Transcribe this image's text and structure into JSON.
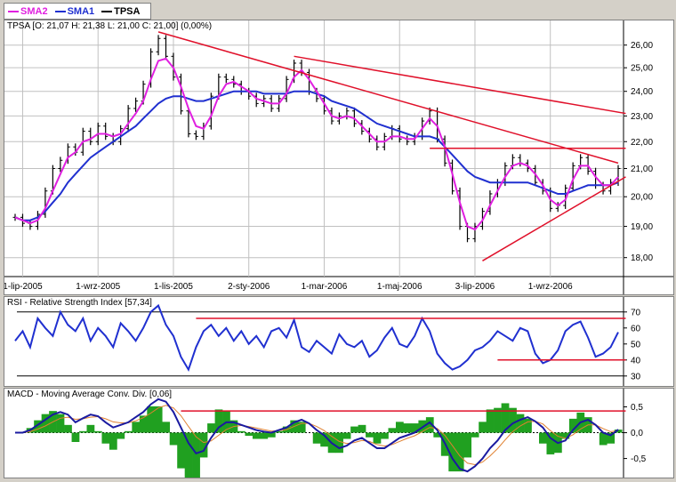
{
  "legend": [
    {
      "name": "SMA2",
      "color": "#e020e0"
    },
    {
      "name": "SMA1",
      "color": "#2030d0"
    },
    {
      "name": "TPSA",
      "color": "#000000"
    }
  ],
  "panels": {
    "price": {
      "title": "TPSA [O: 21,07  H: 21,38  L: 21,00  C: 21,00] (0,00%)"
    },
    "rsi": {
      "title": "RSI - Relative Strength Index [57,34]"
    },
    "macd": {
      "title": "MACD - Moving Average Conv. Div. [0,06]"
    }
  },
  "colors": {
    "trendline": "#e0102a",
    "sma1": "#2030d0",
    "sma2": "#e020e0",
    "macd_line": "#1a1aa0",
    "macd_signal": "#e08030",
    "histogram": "#20a020",
    "price": "#000000",
    "grid": "#c0c0c0"
  },
  "chart_data": [
    {
      "type": "line",
      "title": "TPSA [O: 21,07  H: 21,38  L: 21,00  C: 21,00] (0,00%)",
      "x_tick_labels": [
        "1-lip-2005",
        "1-wrz-2005",
        "1-lis-2005",
        "2-sty-2006",
        "1-mar-2006",
        "1-maj-2006",
        "3-lip-2006",
        "1-wrz-2006"
      ],
      "y_tick_labels": [
        "18,00",
        "19,00",
        "20,00",
        "21,00",
        "22,00",
        "23,00",
        "24,00",
        "25,00",
        "26,00"
      ],
      "ylim": [
        17.5,
        26.8
      ],
      "y_scale": "log",
      "grid": true,
      "series": [
        {
          "name": "TPSA",
          "kind": "ohlc-bars",
          "close": [
            19.3,
            19.1,
            19.0,
            19.4,
            20.2,
            21.0,
            21.3,
            21.8,
            21.6,
            22.4,
            22.0,
            22.6,
            22.2,
            22.0,
            22.5,
            23.3,
            23.6,
            24.3,
            25.7,
            26.3,
            25.5,
            24.6,
            23.2,
            22.3,
            22.2,
            22.6,
            23.8,
            24.6,
            24.5,
            24.3,
            24.0,
            23.8,
            23.5,
            23.7,
            23.3,
            23.7,
            24.5,
            25.2,
            24.8,
            24.0,
            23.7,
            23.2,
            22.8,
            23.0,
            23.2,
            22.7,
            22.4,
            22.1,
            21.8,
            22.2,
            22.5,
            22.1,
            22.0,
            22.2,
            22.8,
            23.2,
            22.1,
            21.2,
            20.2,
            19.0,
            18.6,
            19.0,
            19.5,
            20.1,
            20.5,
            21.1,
            21.4,
            21.2,
            21.0,
            20.5,
            20.2,
            19.6,
            19.7,
            20.3,
            21.1,
            21.4,
            20.9,
            20.4,
            20.2,
            20.5,
            21.0
          ]
        },
        {
          "name": "SMA2",
          "values": [
            19.3,
            19.2,
            19.1,
            19.2,
            19.6,
            20.2,
            20.8,
            21.4,
            21.6,
            22.0,
            22.1,
            22.3,
            22.3,
            22.2,
            22.3,
            22.7,
            23.1,
            23.6,
            24.5,
            25.3,
            25.4,
            25.0,
            24.2,
            23.3,
            22.6,
            22.5,
            23.0,
            23.8,
            24.3,
            24.4,
            24.2,
            24.0,
            23.7,
            23.6,
            23.5,
            23.5,
            23.9,
            24.6,
            24.9,
            24.5,
            24.0,
            23.5,
            23.0,
            22.9,
            23.0,
            22.9,
            22.6,
            22.3,
            22.0,
            22.0,
            22.2,
            22.2,
            22.1,
            22.1,
            22.5,
            22.9,
            22.6,
            21.8,
            20.8,
            19.8,
            19.0,
            18.9,
            19.2,
            19.7,
            20.2,
            20.7,
            21.1,
            21.2,
            21.1,
            20.8,
            20.4,
            19.9,
            19.7,
            19.9,
            20.6,
            21.1,
            21.1,
            20.7,
            20.4,
            20.4,
            20.7
          ]
        },
        {
          "name": "SMA1",
          "values": [
            19.3,
            19.2,
            19.2,
            19.3,
            19.5,
            19.8,
            20.1,
            20.5,
            20.8,
            21.1,
            21.4,
            21.6,
            21.8,
            22.0,
            22.2,
            22.4,
            22.6,
            22.9,
            23.2,
            23.5,
            23.7,
            23.8,
            23.8,
            23.7,
            23.6,
            23.6,
            23.7,
            23.8,
            23.9,
            24.0,
            24.0,
            24.0,
            24.0,
            23.9,
            23.9,
            23.9,
            23.9,
            24.0,
            24.0,
            24.0,
            23.9,
            23.8,
            23.6,
            23.5,
            23.4,
            23.3,
            23.1,
            22.9,
            22.7,
            22.6,
            22.5,
            22.4,
            22.3,
            22.2,
            22.2,
            22.2,
            22.1,
            21.8,
            21.5,
            21.2,
            20.9,
            20.7,
            20.6,
            20.5,
            20.5,
            20.5,
            20.5,
            20.5,
            20.5,
            20.4,
            20.3,
            20.2,
            20.1,
            20.1,
            20.2,
            20.3,
            20.4,
            20.4,
            20.4,
            20.4,
            20.5
          ]
        }
      ],
      "trendlines": [
        {
          "from": [
            19,
            26.6
          ],
          "to": [
            80,
            21.2
          ]
        },
        {
          "from": [
            37,
            25.5
          ],
          "to": [
            81,
            23.1
          ]
        },
        {
          "from": [
            55,
            21.75
          ],
          "to": [
            81,
            21.75
          ]
        },
        {
          "from": [
            62,
            17.9
          ],
          "to": [
            81,
            20.7
          ]
        }
      ]
    },
    {
      "type": "line",
      "title": "RSI - Relative Strength Index [57,34]",
      "y_tick_labels": [
        "30",
        "40",
        "50",
        "60",
        "70"
      ],
      "ylim": [
        26,
        76
      ],
      "series": [
        {
          "name": "RSI",
          "values": [
            52,
            58,
            48,
            66,
            60,
            55,
            70,
            62,
            58,
            66,
            52,
            60,
            55,
            48,
            63,
            58,
            52,
            60,
            70,
            74,
            62,
            55,
            42,
            34,
            48,
            58,
            62,
            55,
            60,
            52,
            58,
            50,
            55,
            48,
            58,
            60,
            54,
            65,
            48,
            45,
            52,
            48,
            44,
            56,
            50,
            48,
            52,
            42,
            46,
            54,
            60,
            50,
            48,
            55,
            66,
            58,
            44,
            38,
            34,
            36,
            40,
            46,
            48,
            52,
            58,
            55,
            52,
            60,
            58,
            44,
            38,
            40,
            46,
            58,
            62,
            64,
            54,
            42,
            44,
            48,
            57.34
          ]
        }
      ],
      "trendlines": [
        {
          "from": [
            24,
            66
          ],
          "to": [
            81,
            66
          ]
        },
        {
          "from": [
            64,
            40
          ],
          "to": [
            81,
            40
          ]
        }
      ],
      "reference_lines": [
        30,
        70
      ]
    },
    {
      "type": "line",
      "title": "MACD - Moving Average Conv. Div. [0,06]",
      "y_tick_labels": [
        "0,5",
        "0,0",
        "-0,5"
      ],
      "ylim": [
        -0.8,
        0.75
      ],
      "series": [
        {
          "name": "MACD",
          "values": [
            0.0,
            0.0,
            0.05,
            0.15,
            0.25,
            0.35,
            0.4,
            0.35,
            0.2,
            0.28,
            0.35,
            0.32,
            0.2,
            0.1,
            0.15,
            0.2,
            0.3,
            0.4,
            0.55,
            0.65,
            0.6,
            0.4,
            0.1,
            -0.2,
            -0.4,
            -0.35,
            -0.1,
            0.1,
            0.2,
            0.2,
            0.15,
            0.1,
            0.05,
            0.02,
            0.0,
            0.05,
            0.1,
            0.2,
            0.25,
            0.18,
            0.05,
            -0.05,
            -0.2,
            -0.3,
            -0.25,
            -0.15,
            -0.1,
            -0.2,
            -0.3,
            -0.3,
            -0.2,
            -0.1,
            -0.05,
            0.0,
            0.1,
            0.2,
            0.05,
            -0.2,
            -0.5,
            -0.7,
            -0.75,
            -0.65,
            -0.5,
            -0.3,
            -0.15,
            0.05,
            0.18,
            0.25,
            0.3,
            0.22,
            0.1,
            -0.1,
            -0.2,
            -0.15,
            0.05,
            0.2,
            0.25,
            0.15,
            0.0,
            -0.05,
            0.06
          ]
        },
        {
          "name": "Signal",
          "values": [
            0.0,
            0.0,
            0.02,
            0.07,
            0.13,
            0.21,
            0.28,
            0.3,
            0.26,
            0.27,
            0.3,
            0.31,
            0.27,
            0.21,
            0.19,
            0.19,
            0.23,
            0.29,
            0.38,
            0.48,
            0.53,
            0.48,
            0.33,
            0.12,
            -0.08,
            -0.19,
            -0.16,
            -0.05,
            0.06,
            0.12,
            0.14,
            0.12,
            0.09,
            0.06,
            0.03,
            0.04,
            0.06,
            0.12,
            0.18,
            0.18,
            0.12,
            0.04,
            -0.07,
            -0.17,
            -0.21,
            -0.19,
            -0.15,
            -0.17,
            -0.23,
            -0.26,
            -0.23,
            -0.17,
            -0.11,
            -0.06,
            0.02,
            0.1,
            0.08,
            -0.05,
            -0.25,
            -0.45,
            -0.59,
            -0.62,
            -0.57,
            -0.45,
            -0.31,
            -0.14,
            0.02,
            0.13,
            0.21,
            0.22,
            0.17,
            0.04,
            -0.07,
            -0.11,
            -0.04,
            0.07,
            0.15,
            0.15,
            0.08,
            0.02,
            0.04
          ]
        }
      ],
      "trendlines": [
        {
          "from": [
            22,
            0.42
          ],
          "to": [
            81,
            0.42
          ]
        }
      ]
    }
  ]
}
